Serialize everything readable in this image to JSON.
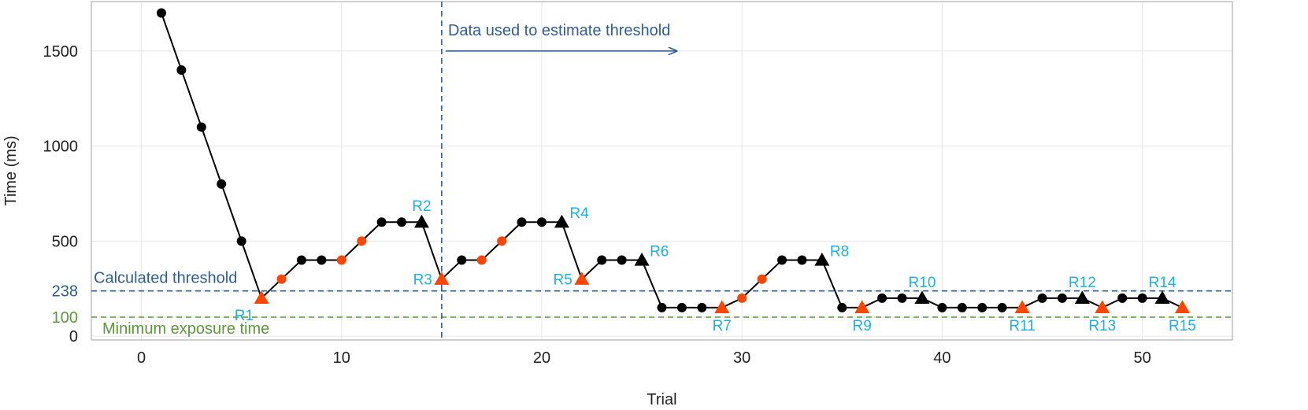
{
  "chart_data": {
    "type": "line",
    "xlabel": "Trial",
    "ylabel": "Time (ms)",
    "xlim": [
      -2.5,
      54.5
    ],
    "ylim": [
      -20,
      1760
    ],
    "x_ticks": [
      0,
      10,
      20,
      30,
      40,
      50
    ],
    "y_ticks": [
      0,
      100,
      238,
      500,
      1000,
      1500
    ],
    "grid": true,
    "colors": {
      "line": "#000000",
      "black_marker": "#000000",
      "orange_marker": "#ff4500",
      "reversal_label": "#1ab2e6",
      "threshold_line": "#2e5d99",
      "minimum_line": "#5a9a3a",
      "annotation_arrow": "#2e5d99"
    },
    "series": [
      {
        "points": [
          {
            "x": 1,
            "y": 1700,
            "marker": "circle",
            "color": "black"
          },
          {
            "x": 2,
            "y": 1400,
            "marker": "circle",
            "color": "black"
          },
          {
            "x": 3,
            "y": 1100,
            "marker": "circle",
            "color": "black"
          },
          {
            "x": 4,
            "y": 800,
            "marker": "circle",
            "color": "black"
          },
          {
            "x": 5,
            "y": 500,
            "marker": "circle",
            "color": "black"
          },
          {
            "x": 6,
            "y": 200,
            "marker": "triangle",
            "color": "orange",
            "label": "R1",
            "label_pos": "below-left"
          },
          {
            "x": 7,
            "y": 300,
            "marker": "circle",
            "color": "orange"
          },
          {
            "x": 8,
            "y": 400,
            "marker": "circle",
            "color": "black"
          },
          {
            "x": 9,
            "y": 400,
            "marker": "circle",
            "color": "black"
          },
          {
            "x": 10,
            "y": 400,
            "marker": "circle",
            "color": "orange"
          },
          {
            "x": 11,
            "y": 500,
            "marker": "circle",
            "color": "orange"
          },
          {
            "x": 12,
            "y": 600,
            "marker": "circle",
            "color": "black"
          },
          {
            "x": 13,
            "y": 600,
            "marker": "circle",
            "color": "black"
          },
          {
            "x": 14,
            "y": 600,
            "marker": "triangle",
            "color": "black",
            "label": "R2",
            "label_pos": "above"
          },
          {
            "x": 15,
            "y": 300,
            "marker": "triangle",
            "color": "orange",
            "label": "R3",
            "label_pos": "left"
          },
          {
            "x": 16,
            "y": 400,
            "marker": "circle",
            "color": "black"
          },
          {
            "x": 17,
            "y": 400,
            "marker": "circle",
            "color": "orange"
          },
          {
            "x": 18,
            "y": 500,
            "marker": "circle",
            "color": "orange"
          },
          {
            "x": 19,
            "y": 600,
            "marker": "circle",
            "color": "black"
          },
          {
            "x": 20,
            "y": 600,
            "marker": "circle",
            "color": "black"
          },
          {
            "x": 21,
            "y": 600,
            "marker": "triangle",
            "color": "black",
            "label": "R4",
            "label_pos": "right"
          },
          {
            "x": 22,
            "y": 300,
            "marker": "triangle",
            "color": "orange",
            "label": "R5",
            "label_pos": "left"
          },
          {
            "x": 23,
            "y": 400,
            "marker": "circle",
            "color": "black"
          },
          {
            "x": 24,
            "y": 400,
            "marker": "circle",
            "color": "black"
          },
          {
            "x": 25,
            "y": 400,
            "marker": "triangle",
            "color": "black",
            "label": "R6",
            "label_pos": "right"
          },
          {
            "x": 26,
            "y": 150,
            "marker": "circle",
            "color": "black"
          },
          {
            "x": 27,
            "y": 150,
            "marker": "circle",
            "color": "black"
          },
          {
            "x": 28,
            "y": 150,
            "marker": "circle",
            "color": "black"
          },
          {
            "x": 29,
            "y": 150,
            "marker": "triangle",
            "color": "orange",
            "label": "R7",
            "label_pos": "below"
          },
          {
            "x": 30,
            "y": 200,
            "marker": "circle",
            "color": "orange"
          },
          {
            "x": 31,
            "y": 300,
            "marker": "circle",
            "color": "orange"
          },
          {
            "x": 32,
            "y": 400,
            "marker": "circle",
            "color": "black"
          },
          {
            "x": 33,
            "y": 400,
            "marker": "circle",
            "color": "black"
          },
          {
            "x": 34,
            "y": 400,
            "marker": "triangle",
            "color": "black",
            "label": "R8",
            "label_pos": "right"
          },
          {
            "x": 35,
            "y": 150,
            "marker": "circle",
            "color": "black"
          },
          {
            "x": 36,
            "y": 150,
            "marker": "triangle",
            "color": "orange",
            "label": "R9",
            "label_pos": "below"
          },
          {
            "x": 37,
            "y": 200,
            "marker": "circle",
            "color": "black"
          },
          {
            "x": 38,
            "y": 200,
            "marker": "circle",
            "color": "black"
          },
          {
            "x": 39,
            "y": 200,
            "marker": "triangle",
            "color": "black",
            "label": "R10",
            "label_pos": "above"
          },
          {
            "x": 40,
            "y": 150,
            "marker": "circle",
            "color": "black"
          },
          {
            "x": 41,
            "y": 150,
            "marker": "circle",
            "color": "black"
          },
          {
            "x": 42,
            "y": 150,
            "marker": "circle",
            "color": "black"
          },
          {
            "x": 43,
            "y": 150,
            "marker": "circle",
            "color": "black"
          },
          {
            "x": 44,
            "y": 150,
            "marker": "triangle",
            "color": "orange",
            "label": "R11",
            "label_pos": "below"
          },
          {
            "x": 45,
            "y": 200,
            "marker": "circle",
            "color": "black"
          },
          {
            "x": 46,
            "y": 200,
            "marker": "circle",
            "color": "black"
          },
          {
            "x": 47,
            "y": 200,
            "marker": "triangle",
            "color": "black",
            "label": "R12",
            "label_pos": "above"
          },
          {
            "x": 48,
            "y": 150,
            "marker": "triangle",
            "color": "orange",
            "label": "R13",
            "label_pos": "below"
          },
          {
            "x": 49,
            "y": 200,
            "marker": "circle",
            "color": "black"
          },
          {
            "x": 50,
            "y": 200,
            "marker": "circle",
            "color": "black"
          },
          {
            "x": 51,
            "y": 200,
            "marker": "triangle",
            "color": "black",
            "label": "R14",
            "label_pos": "above"
          },
          {
            "x": 52,
            "y": 150,
            "marker": "triangle",
            "color": "orange",
            "label": "R15",
            "label_pos": "below"
          }
        ]
      }
    ],
    "reference_lines": [
      {
        "orientation": "horizontal",
        "value": 238,
        "style": "dashed",
        "color": "threshold",
        "label": "Calculated threshold",
        "label_pos": "above-left"
      },
      {
        "orientation": "horizontal",
        "value": 100,
        "style": "dashed",
        "color": "minimum",
        "label": "Minimum exposure time",
        "label_pos": "below-left"
      },
      {
        "orientation": "vertical",
        "value": 15,
        "style": "dashed",
        "color": "threshold"
      }
    ],
    "annotations": [
      {
        "text": "Data used to estimate threshold",
        "arrow_from_x": 15.2,
        "arrow_to_x": 26.7,
        "arrow_y": 1500
      }
    ]
  }
}
